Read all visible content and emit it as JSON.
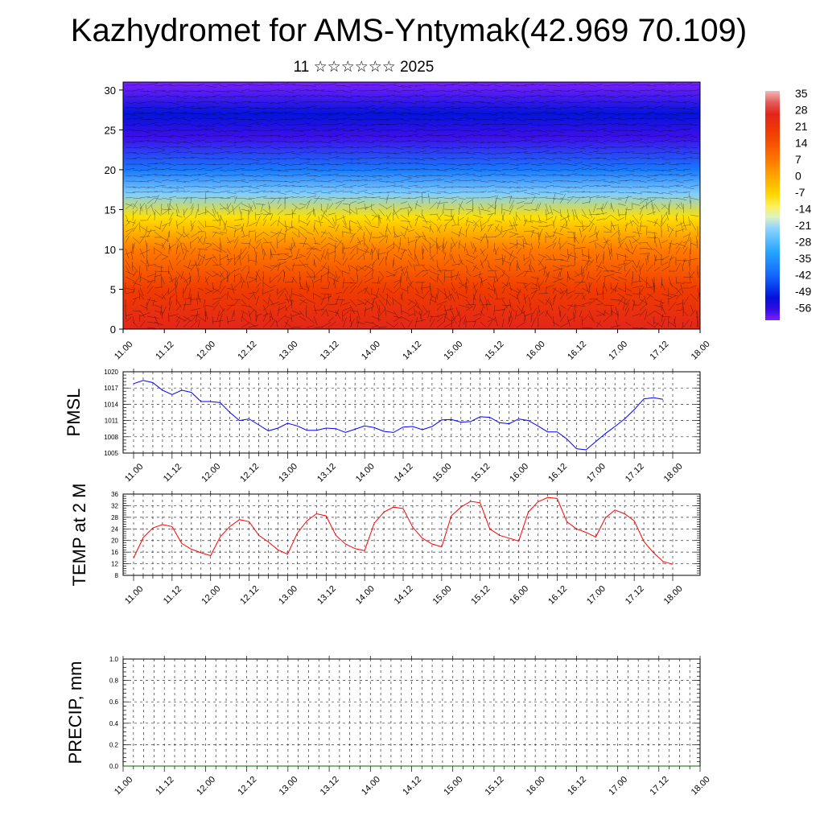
{
  "page": {
    "title": "Kazhydromet for AMS-Yntymak(42.969 70.109)",
    "subtitle": "11 ☆☆☆☆☆☆ 2025"
  },
  "colors": {
    "pmsl_line": "#0000ff",
    "temp_line": "#ff0000",
    "precip_line": "#006400",
    "colorbar": [
      "#f0b8b8",
      "#e02020",
      "#ff6a00",
      "#ffb000",
      "#ffe000",
      "#ffffa0",
      "#a0d8ff",
      "#30b0ff",
      "#1060ff",
      "#0000d0",
      "#7a20ff"
    ]
  },
  "chart_data": [
    {
      "id": "cross_section",
      "type": "heatmap",
      "title": "",
      "y_ticks": [
        "0",
        "5",
        "10",
        "15",
        "20",
        "25",
        "30"
      ],
      "ylim": [
        0,
        31
      ],
      "x_ticks": [
        "11.00",
        "11.12",
        "12.00",
        "12.12",
        "13.00",
        "13.12",
        "14.00",
        "14.12",
        "15.00",
        "15.12",
        "16.00",
        "16.12",
        "17.00",
        "17.12",
        "18.00"
      ],
      "colorbar_labels": [
        "35",
        "28",
        "21",
        "14",
        "7",
        "0",
        "-7",
        "-14",
        "-21",
        "-28",
        "-35",
        "-42",
        "-49",
        "-56"
      ],
      "colorbar_range": [
        -60,
        38
      ],
      "vertical_profile": [
        {
          "level": 0,
          "value": 28
        },
        {
          "level": 5,
          "value": 20
        },
        {
          "level": 10,
          "value": 8
        },
        {
          "level": 14,
          "value": -8
        },
        {
          "level": 17,
          "value": -22
        },
        {
          "level": 20,
          "value": -38
        },
        {
          "level": 24,
          "value": -56
        },
        {
          "level": 27,
          "value": -50
        },
        {
          "level": 31,
          "value": -60
        }
      ]
    },
    {
      "id": "pmsl",
      "type": "line",
      "ylabel": "PMSL",
      "ylim": [
        1005,
        1020
      ],
      "y_ticks": [
        "1005",
        "1008",
        "1011",
        "1014",
        "1017",
        "1020"
      ],
      "x_ticks": [
        "11.00",
        "11.12",
        "12.00",
        "12.12",
        "13.00",
        "13.12",
        "14.00",
        "14.12",
        "15.00",
        "15.12",
        "16.00",
        "16.12",
        "17.00",
        "17.12",
        "18.00"
      ],
      "x_step_hours": 3,
      "values": [
        1017.8,
        1018.4,
        1018,
        1016.6,
        1015.8,
        1016.6,
        1016.2,
        1014.5,
        1014.5,
        1014.3,
        1012.5,
        1011,
        1011.3,
        1010.2,
        1009.1,
        1009.6,
        1010.5,
        1010,
        1009.2,
        1009.2,
        1009.6,
        1009.5,
        1008.8,
        1009.4,
        1010,
        1009.7,
        1009,
        1008.8,
        1009.8,
        1009.9,
        1009.3,
        1009.9,
        1011.1,
        1011.2,
        1010.7,
        1010.8,
        1011.7,
        1011.6,
        1010.6,
        1010.4,
        1011.3,
        1011,
        1010,
        1008.9,
        1008.9,
        1007.6,
        1005.8,
        1005.6,
        1007.1,
        1008.6,
        1009.9,
        1011.3,
        1013,
        1015,
        1015.2,
        1014.9
      ]
    },
    {
      "id": "temp2m",
      "type": "line",
      "ylabel": "TEMP at 2 M",
      "ylim": [
        8,
        36
      ],
      "y_ticks": [
        "8",
        "12",
        "16",
        "20",
        "24",
        "28",
        "32",
        "36"
      ],
      "x_ticks": [
        "11.00",
        "11.12",
        "12.00",
        "12.12",
        "13.00",
        "13.12",
        "14.00",
        "14.12",
        "15.00",
        "15.12",
        "16.00",
        "16.12",
        "17.00",
        "17.12",
        "18.00"
      ],
      "x_step_hours": 3,
      "values": [
        14,
        21,
        24.3,
        25.5,
        24.8,
        19,
        17,
        15.8,
        14.8,
        21.3,
        24.8,
        27.2,
        26.5,
        21.8,
        19.5,
        16.8,
        15.3,
        22.5,
        26.8,
        29.2,
        28.5,
        21.8,
        18.8,
        17.2,
        16.5,
        26,
        29.8,
        31.5,
        31,
        24.5,
        20.8,
        18.8,
        17.8,
        28.5,
        31.5,
        33.5,
        33,
        24,
        21.8,
        20.8,
        19.8,
        29.8,
        33.3,
        34.8,
        34.5,
        26.5,
        24,
        22.8,
        21.2,
        27.8,
        30.5,
        29.2,
        26.8,
        19.7,
        15.8,
        12.8,
        11.8
      ]
    },
    {
      "id": "precip",
      "type": "line",
      "ylabel": "PRECIP, mm",
      "ylim": [
        0,
        1
      ],
      "y_ticks": [
        "0.0",
        "0.2",
        "0.4",
        "0.6",
        "0.8",
        "1.0"
      ],
      "x_ticks": [
        "11.00",
        "11.12",
        "12.00",
        "12.12",
        "13.00",
        "13.12",
        "14.00",
        "14.12",
        "15.00",
        "15.12",
        "16.00",
        "16.12",
        "17.00",
        "17.12",
        "18.00"
      ],
      "x_step_hours": 3,
      "values": [
        0,
        0,
        0,
        0,
        0,
        0,
        0,
        0,
        0,
        0,
        0,
        0,
        0,
        0,
        0,
        0,
        0,
        0,
        0,
        0,
        0,
        0,
        0,
        0,
        0,
        0,
        0,
        0,
        0,
        0,
        0,
        0,
        0,
        0,
        0,
        0,
        0,
        0,
        0,
        0,
        0,
        0,
        0,
        0,
        0,
        0,
        0,
        0,
        0,
        0,
        0,
        0,
        0,
        0,
        0,
        0,
        0
      ]
    }
  ]
}
